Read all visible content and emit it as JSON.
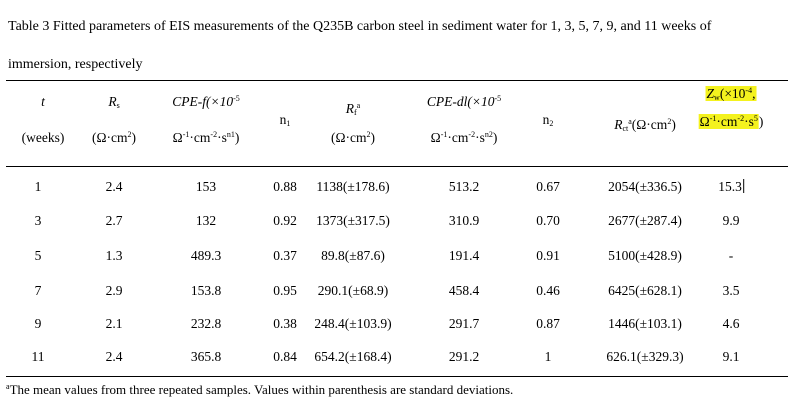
{
  "caption": {
    "line1": "Table 3 Fitted parameters of EIS measurements of the Q235B carbon steel in sediment water for 1, 3, 5, 7, 9, and 11 weeks of",
    "line2": "immersion, respectively"
  },
  "headers": {
    "t_top": "t",
    "t_bot": "(weeks)",
    "rs_top": "R",
    "rs_top_sub": "s",
    "rs_bot_pre": "(Ω·cm",
    "rs_bot_sup": "2",
    "rs_bot_post": ")",
    "cpef_top_pre": "CPE-f(×10",
    "cpef_top_sup": "-5",
    "cpef_bot_1": "Ω",
    "cpef_bot_1_sup": "-1",
    "cpef_bot_2": "·cm",
    "cpef_bot_2_sup": "-2",
    "cpef_bot_3": "·s",
    "cpef_bot_3_sup": "n1",
    "cpef_bot_4": ")",
    "n1": "n",
    "n1_sub": "1",
    "rf_top": "R",
    "rf_top_sub": "f",
    "rf_top_sup": "a",
    "rf_bot_pre": "(Ω·cm",
    "rf_bot_sup": "2",
    "rf_bot_post": ")",
    "cpedl_top_pre": "CPE-dl(×10",
    "cpedl_top_sup": "-5",
    "cpedl_bot_1": "Ω",
    "cpedl_bot_1_sup": "-1",
    "cpedl_bot_2": "·cm",
    "cpedl_bot_2_sup": "-2",
    "cpedl_bot_3": "·s",
    "cpedl_bot_3_sup": "n2",
    "cpedl_bot_4": ")",
    "n2": "n",
    "n2_sub": "2",
    "rct_pre": "R",
    "rct_sub": "ct",
    "rct_sup": "a",
    "rct_post": "(Ω·cm",
    "rct_post_sup": "2",
    "rct_end": ")",
    "zw_top_pre": "Z",
    "zw_top_sub": "w",
    "zw_top_mid": "(×10",
    "zw_top_sup": "-4",
    "zw_top_end": ",",
    "zw_bot_1": "Ω",
    "zw_bot_1_sup": "-1",
    "zw_bot_2": "·cm",
    "zw_bot_2_sup": "-2",
    "zw_bot_3": "·s",
    "zw_bot_3_sup": "5",
    "zw_bot_4": ")"
  },
  "rows": [
    [
      "1",
      "2.4",
      "153",
      "0.88",
      "1138(±178.6)",
      "513.2",
      "0.67",
      "2054(±336.5)",
      "15.3"
    ],
    [
      "3",
      "2.7",
      "132",
      "0.92",
      "1373(±317.5)",
      "310.9",
      "0.70",
      "2677(±287.4)",
      "9.9"
    ],
    [
      "5",
      "1.3",
      "489.3",
      "0.37",
      "89.8(±87.6)",
      "191.4",
      "0.91",
      "5100(±428.9)",
      "-"
    ],
    [
      "7",
      "2.9",
      "153.8",
      "0.95",
      "290.1(±68.9)",
      "458.4",
      "0.46",
      "6425(±628.1)",
      "3.5"
    ],
    [
      "9",
      "2.1",
      "232.8",
      "0.38",
      "248.4(±103.9)",
      "291.7",
      "0.87",
      "1446(±103.1)",
      "4.6"
    ],
    [
      "11",
      "2.4",
      "365.8",
      "0.84",
      "654.2(±168.4)",
      "291.2",
      "1",
      "626.1(±329.3)",
      "9.1"
    ]
  ],
  "footnote": {
    "mark": "a",
    "text": "The mean values from three repeated samples. Values within parenthesis are standard deviations."
  },
  "highlight_color": "#f4f21e"
}
